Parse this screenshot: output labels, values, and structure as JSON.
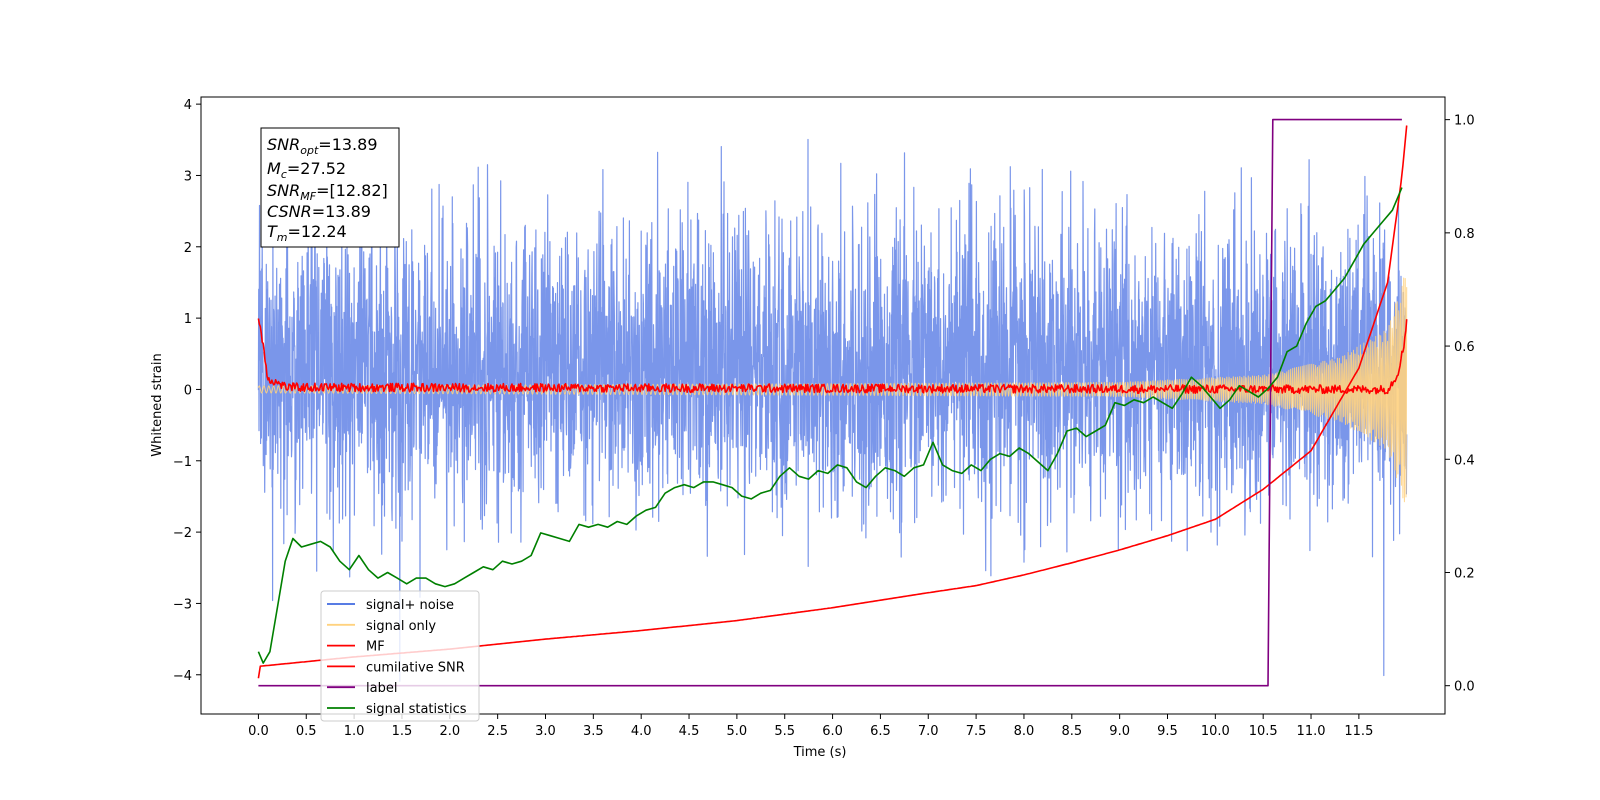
{
  "chart_data": {
    "type": "line",
    "xlabel": "Time (s)",
    "ylabel": "Whitened strain",
    "xlim": [
      -0.6,
      12.4
    ],
    "ylim": [
      -4.55,
      4.1
    ],
    "y2lim": [
      -0.05,
      1.04
    ],
    "x_ticks": [
      0.0,
      0.5,
      1.0,
      1.5,
      2.0,
      2.5,
      3.0,
      3.5,
      4.0,
      4.5,
      5.0,
      5.5,
      6.0,
      6.5,
      7.0,
      7.5,
      8.0,
      8.5,
      9.0,
      9.5,
      10.0,
      10.5,
      11.0,
      11.5
    ],
    "x_tick_labels": [
      "0.0",
      "0.5",
      "1.0",
      "1.5",
      "2.0",
      "2.5",
      "3.0",
      "3.5",
      "4.0",
      "4.5",
      "5.0",
      "5.5",
      "6.0",
      "6.5",
      "7.0",
      "7.5",
      "8.0",
      "8.5",
      "9.0",
      "9.5",
      "10.0",
      "10.5",
      "11.0",
      "11.5"
    ],
    "y_ticks": [
      4,
      3,
      2,
      1,
      0,
      -1,
      -2,
      -3,
      -4
    ],
    "y_tick_labels": [
      "4",
      "3",
      "2",
      "1",
      "0",
      "−1",
      "−2",
      "−3",
      "−4"
    ],
    "y2_ticks": [
      1.0,
      0.8,
      0.6,
      0.4,
      0.2,
      0.0
    ],
    "y2_tick_labels": [
      "1.0",
      "0.8",
      "0.6",
      "0.4",
      "0.2",
      "0.0"
    ],
    "grid": false,
    "legend_placement": "lower-left",
    "annotation": {
      "lines": [
        {
          "var": "SNR",
          "sub": "opt",
          "value": "=13.89"
        },
        {
          "var": "M",
          "sub": "c",
          "value": "=27.52"
        },
        {
          "var": "SNR",
          "sub": "MF",
          "value": "=[12.82]"
        },
        {
          "var": "CSNR",
          "sub": "",
          "value": "=13.89"
        },
        {
          "var": "T",
          "sub": "m",
          "value": "=12.24"
        }
      ]
    },
    "noise_seed": 7,
    "series": [
      {
        "name": "signal+ noise",
        "color": "#4169e1",
        "axis": "left",
        "kind": "noisy",
        "t_start": 0.0,
        "t_end": 12.0,
        "noise_sigma": 1.0,
        "typical_range": [
          -3.0,
          3.6
        ]
      },
      {
        "name": "signal only",
        "color": "#ffd27f",
        "axis": "left",
        "kind": "chirp",
        "t_start": 0.0,
        "t_end": 12.0,
        "amplitude_points": [
          [
            0.0,
            0.05
          ],
          [
            9.0,
            0.1
          ],
          [
            10.5,
            0.2
          ],
          [
            11.3,
            0.45
          ],
          [
            11.8,
            0.85
          ],
          [
            12.0,
            1.7
          ]
        ]
      },
      {
        "name": "MF",
        "color": "#ff0000",
        "axis": "left",
        "kind": "jitter",
        "points": [
          [
            0.0,
            1.0
          ],
          [
            0.03,
            0.8
          ],
          [
            0.1,
            0.15
          ],
          [
            0.3,
            0.03
          ],
          [
            11.8,
            0.0
          ],
          [
            11.9,
            0.2
          ],
          [
            11.97,
            0.6
          ],
          [
            12.0,
            1.0
          ]
        ],
        "jitter": 0.06
      },
      {
        "name": "cumilative SNR",
        "color": "#ff0000",
        "axis": "left",
        "kind": "smooth",
        "points": [
          [
            0.0,
            -4.05
          ],
          [
            0.02,
            -3.88
          ],
          [
            1.0,
            -3.75
          ],
          [
            2.0,
            -3.64
          ],
          [
            3.0,
            -3.5
          ],
          [
            4.0,
            -3.38
          ],
          [
            5.0,
            -3.24
          ],
          [
            6.0,
            -3.06
          ],
          [
            7.0,
            -2.85
          ],
          [
            7.5,
            -2.75
          ],
          [
            8.0,
            -2.6
          ],
          [
            8.5,
            -2.43
          ],
          [
            9.0,
            -2.25
          ],
          [
            9.5,
            -2.05
          ],
          [
            10.0,
            -1.82
          ],
          [
            10.5,
            -1.4
          ],
          [
            11.0,
            -0.86
          ],
          [
            11.5,
            0.3
          ],
          [
            11.8,
            1.5
          ],
          [
            11.95,
            3.0
          ],
          [
            12.0,
            3.7
          ]
        ]
      },
      {
        "name": "label",
        "color": "#800080",
        "axis": "right",
        "kind": "polyline",
        "points": [
          [
            0.0,
            0.0
          ],
          [
            10.55,
            0.0
          ],
          [
            10.6,
            1.0
          ],
          [
            11.95,
            1.0
          ]
        ]
      },
      {
        "name": "signal statistics",
        "color": "#008000",
        "axis": "right",
        "kind": "polyline",
        "points": [
          [
            0.0,
            0.06
          ],
          [
            0.05,
            0.04
          ],
          [
            0.12,
            0.06
          ],
          [
            0.2,
            0.14
          ],
          [
            0.28,
            0.22
          ],
          [
            0.36,
            0.26
          ],
          [
            0.45,
            0.245
          ],
          [
            0.55,
            0.25
          ],
          [
            0.65,
            0.255
          ],
          [
            0.75,
            0.245
          ],
          [
            0.85,
            0.22
          ],
          [
            0.95,
            0.205
          ],
          [
            1.05,
            0.23
          ],
          [
            1.15,
            0.205
          ],
          [
            1.25,
            0.19
          ],
          [
            1.35,
            0.2
          ],
          [
            1.45,
            0.19
          ],
          [
            1.55,
            0.18
          ],
          [
            1.65,
            0.19
          ],
          [
            1.75,
            0.19
          ],
          [
            1.85,
            0.18
          ],
          [
            1.95,
            0.175
          ],
          [
            2.05,
            0.18
          ],
          [
            2.15,
            0.19
          ],
          [
            2.25,
            0.2
          ],
          [
            2.35,
            0.21
          ],
          [
            2.45,
            0.205
          ],
          [
            2.55,
            0.22
          ],
          [
            2.65,
            0.215
          ],
          [
            2.75,
            0.22
          ],
          [
            2.85,
            0.23
          ],
          [
            2.95,
            0.27
          ],
          [
            3.05,
            0.265
          ],
          [
            3.15,
            0.26
          ],
          [
            3.25,
            0.255
          ],
          [
            3.35,
            0.285
          ],
          [
            3.45,
            0.28
          ],
          [
            3.55,
            0.285
          ],
          [
            3.65,
            0.28
          ],
          [
            3.75,
            0.29
          ],
          [
            3.85,
            0.285
          ],
          [
            3.95,
            0.3
          ],
          [
            4.05,
            0.31
          ],
          [
            4.15,
            0.315
          ],
          [
            4.25,
            0.34
          ],
          [
            4.35,
            0.35
          ],
          [
            4.45,
            0.355
          ],
          [
            4.55,
            0.35
          ],
          [
            4.65,
            0.36
          ],
          [
            4.75,
            0.36
          ],
          [
            4.85,
            0.355
          ],
          [
            4.95,
            0.35
          ],
          [
            5.05,
            0.335
          ],
          [
            5.15,
            0.33
          ],
          [
            5.25,
            0.34
          ],
          [
            5.35,
            0.345
          ],
          [
            5.45,
            0.37
          ],
          [
            5.55,
            0.385
          ],
          [
            5.65,
            0.37
          ],
          [
            5.75,
            0.365
          ],
          [
            5.85,
            0.38
          ],
          [
            5.95,
            0.375
          ],
          [
            6.05,
            0.39
          ],
          [
            6.15,
            0.385
          ],
          [
            6.25,
            0.36
          ],
          [
            6.35,
            0.35
          ],
          [
            6.45,
            0.37
          ],
          [
            6.55,
            0.385
          ],
          [
            6.65,
            0.38
          ],
          [
            6.75,
            0.37
          ],
          [
            6.85,
            0.385
          ],
          [
            6.95,
            0.39
          ],
          [
            7.05,
            0.43
          ],
          [
            7.15,
            0.39
          ],
          [
            7.25,
            0.38
          ],
          [
            7.35,
            0.375
          ],
          [
            7.45,
            0.39
          ],
          [
            7.55,
            0.38
          ],
          [
            7.65,
            0.4
          ],
          [
            7.75,
            0.41
          ],
          [
            7.85,
            0.405
          ],
          [
            7.95,
            0.42
          ],
          [
            8.05,
            0.41
          ],
          [
            8.15,
            0.395
          ],
          [
            8.25,
            0.38
          ],
          [
            8.35,
            0.41
          ],
          [
            8.45,
            0.45
          ],
          [
            8.55,
            0.455
          ],
          [
            8.65,
            0.44
          ],
          [
            8.75,
            0.45
          ],
          [
            8.85,
            0.46
          ],
          [
            8.95,
            0.5
          ],
          [
            9.05,
            0.495
          ],
          [
            9.15,
            0.505
          ],
          [
            9.25,
            0.5
          ],
          [
            9.35,
            0.51
          ],
          [
            9.45,
            0.5
          ],
          [
            9.55,
            0.49
          ],
          [
            9.65,
            0.515
          ],
          [
            9.75,
            0.545
          ],
          [
            9.85,
            0.53
          ],
          [
            9.95,
            0.51
          ],
          [
            10.05,
            0.49
          ],
          [
            10.15,
            0.505
          ],
          [
            10.25,
            0.53
          ],
          [
            10.35,
            0.52
          ],
          [
            10.45,
            0.51
          ],
          [
            10.55,
            0.525
          ],
          [
            10.65,
            0.545
          ],
          [
            10.75,
            0.59
          ],
          [
            10.85,
            0.6
          ],
          [
            10.95,
            0.64
          ],
          [
            11.05,
            0.67
          ],
          [
            11.15,
            0.68
          ],
          [
            11.25,
            0.7
          ],
          [
            11.35,
            0.72
          ],
          [
            11.45,
            0.75
          ],
          [
            11.55,
            0.78
          ],
          [
            11.65,
            0.8
          ],
          [
            11.75,
            0.82
          ],
          [
            11.85,
            0.84
          ],
          [
            11.95,
            0.88
          ]
        ]
      }
    ]
  }
}
